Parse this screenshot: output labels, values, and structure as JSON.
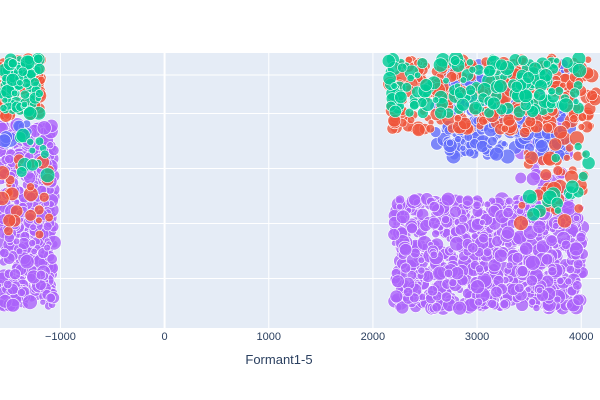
{
  "chart_data": {
    "type": "scatter",
    "title": "",
    "xlabel": "Formant1-5",
    "ylabel": "",
    "xlim": [
      -1580,
      4180
    ],
    "ylim": [
      0,
      100
    ],
    "grid": true,
    "x_ticks": [
      -1000,
      0,
      1000,
      2000,
      3000,
      4000
    ],
    "x_tick_labels": [
      "−1000",
      "0",
      "1000",
      "2000",
      "3000",
      "4000"
    ],
    "y_gridlines": [
      18,
      38,
      58,
      78,
      92
    ],
    "show_legend": false,
    "colors": {
      "plot_bg": "#e5ecf6",
      "grid": "#ffffff",
      "series_red": "#ef553b",
      "series_green": "#00cc96",
      "series_blue": "#636efa",
      "series_purple": "#ab63fa"
    },
    "series": [
      {
        "color_key": "series_purple",
        "regions": [
          {
            "x": [
              -1580,
              -1060
            ],
            "y": [
              8,
              74
            ],
            "count": 520
          },
          {
            "x": [
              2200,
              4020
            ],
            "y": [
              7,
              47
            ],
            "count": 900
          },
          {
            "x": [
              3400,
              3900
            ],
            "y": [
              45,
              80
            ],
            "count": 60
          }
        ]
      },
      {
        "color_key": "series_blue",
        "regions": [
          {
            "x": [
              2600,
              3900
            ],
            "y": [
              62,
              96
            ],
            "count": 280
          },
          {
            "x": [
              2900,
              3500
            ],
            "y": [
              72,
              88
            ],
            "count": 60
          },
          {
            "x": [
              -1580,
              -1300
            ],
            "y": [
              64,
              76
            ],
            "count": 12
          }
        ]
      },
      {
        "color_key": "series_red",
        "regions": [
          {
            "x": [
              -1580,
              -1180
            ],
            "y": [
              77,
              98
            ],
            "count": 110
          },
          {
            "x": [
              2150,
              4150
            ],
            "y": [
              72,
              98
            ],
            "count": 280
          },
          {
            "x": [
              -1580,
              -1100
            ],
            "y": [
              30,
              62
            ],
            "count": 25
          },
          {
            "x": [
              3400,
              4050
            ],
            "y": [
              38,
              72
            ],
            "count": 40
          }
        ]
      },
      {
        "color_key": "series_green",
        "regions": [
          {
            "x": [
              -1560,
              -1200
            ],
            "y": [
              78,
              98
            ],
            "count": 90
          },
          {
            "x": [
              2150,
              4000
            ],
            "y": [
              78,
              99
            ],
            "count": 170
          },
          {
            "x": [
              -1450,
              -1100
            ],
            "y": [
              55,
              70
            ],
            "count": 12
          },
          {
            "x": [
              3500,
              4100
            ],
            "y": [
              40,
              70
            ],
            "count": 18
          }
        ]
      }
    ]
  }
}
